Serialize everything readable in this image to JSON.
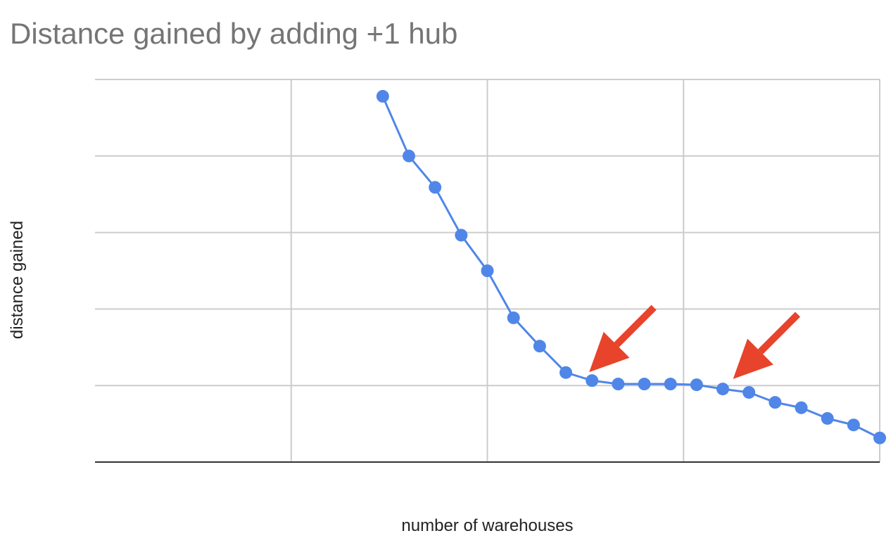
{
  "chart_data": {
    "type": "line",
    "title": "Distance gained by adding +1 hub",
    "xlabel": "number of warehouses",
    "ylabel": "distance gained",
    "xlim": [
      0,
      30
    ],
    "ylim": [
      0,
      100
    ],
    "x": [
      11,
      12,
      13,
      14,
      15,
      16,
      17,
      18,
      19,
      20,
      21,
      22,
      23,
      24,
      25,
      26,
      27,
      28,
      29,
      30
    ],
    "series": [
      {
        "values": [
          95.6,
          80,
          71.8,
          59.3,
          50,
          37.7,
          30.3,
          23.4,
          21.3,
          20.4,
          20.4,
          20.4,
          20.2,
          19.1,
          18.2,
          15.6,
          14.2,
          11.4,
          9.7,
          6.3
        ]
      }
    ],
    "grid": true,
    "legend": "none",
    "annotations": [
      {
        "type": "arrow",
        "points_to": [
          19,
          21.3
        ]
      },
      {
        "type": "arrow",
        "points_to": [
          24.5,
          19.5
        ]
      }
    ],
    "colors": {
      "series": "#5086e8",
      "arrow": "#e8432b",
      "grid": "#cccccc",
      "axis": "#333333"
    }
  }
}
